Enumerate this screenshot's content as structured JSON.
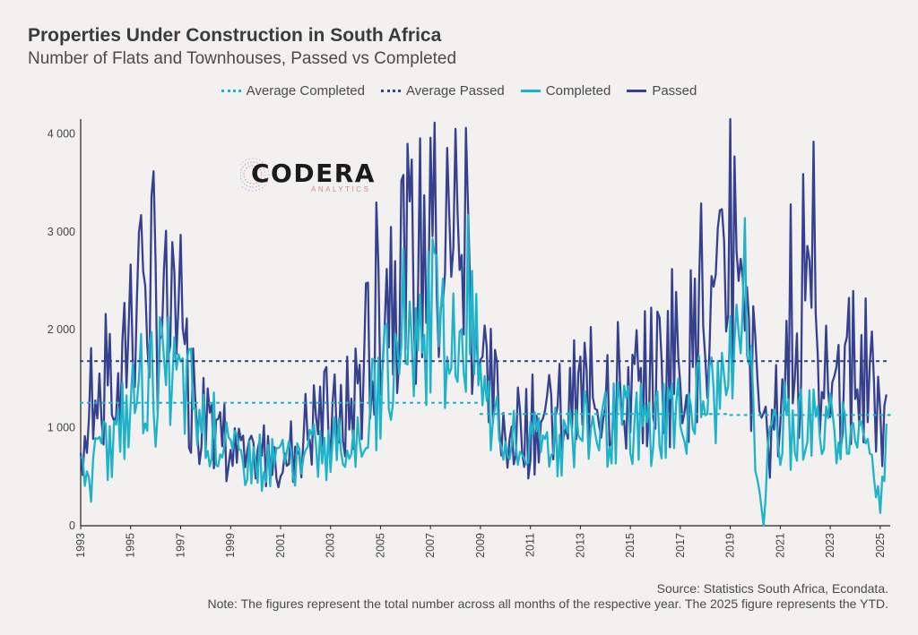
{
  "title": "Properties Under Construction in South Africa",
  "subtitle": "Number of Flats and Townhouses, Passed vs Completed",
  "legend": [
    {
      "label": "Average Completed",
      "style": "dotted",
      "color": "#1fb3c9"
    },
    {
      "label": "Average Passed",
      "style": "dotted",
      "color": "#35418f"
    },
    {
      "label": "Completed",
      "style": "solid",
      "color": "#1fb3c9"
    },
    {
      "label": "Passed",
      "style": "solid",
      "color": "#35418f"
    }
  ],
  "logo": {
    "name": "CODERA",
    "sub": "ANALYTICS"
  },
  "footer": {
    "source": "Source: Statistics South Africa, Econdata.",
    "note": "Note: The figures represent the total number across all months of the respective year. The 2025 figure represents the YTD."
  },
  "chart_data": {
    "type": "line",
    "title": "Properties Under Construction in South Africa",
    "xlabel": "",
    "ylabel": "",
    "xlim": [
      1993,
      2025.4
    ],
    "ylim": [
      0,
      4150
    ],
    "x_ticks": [
      "1993",
      "1995",
      "1997",
      "1999",
      "2001",
      "2003",
      "2005",
      "2007",
      "2009",
      "2011",
      "2013",
      "2015",
      "2017",
      "2019",
      "2021",
      "2023",
      "2025"
    ],
    "y_ticks": [
      "0",
      "1 000",
      "2 000",
      "3 000",
      "4 000"
    ],
    "grid": false,
    "legend_position": "top-center",
    "series": [
      {
        "name": "Passed",
        "color": "#35418f",
        "anchors": [
          [
            1993.0,
            750
          ],
          [
            1993.3,
            1150
          ],
          [
            1993.6,
            1800
          ],
          [
            1993.9,
            1350
          ],
          [
            1994.2,
            1700
          ],
          [
            1994.6,
            1050
          ],
          [
            1994.9,
            2200
          ],
          [
            1995.2,
            2500
          ],
          [
            1995.5,
            2700
          ],
          [
            1995.8,
            2400
          ],
          [
            1996.1,
            2300
          ],
          [
            1996.4,
            2050
          ],
          [
            1996.7,
            1900
          ],
          [
            1997.0,
            1700
          ],
          [
            1997.4,
            1500
          ],
          [
            1997.8,
            1100
          ],
          [
            1998.2,
            1300
          ],
          [
            1998.6,
            1000
          ],
          [
            1999.0,
            700
          ],
          [
            1999.4,
            700
          ],
          [
            1999.8,
            600
          ],
          [
            2000.2,
            700
          ],
          [
            2000.6,
            800
          ],
          [
            2001.0,
            750
          ],
          [
            2001.4,
            750
          ],
          [
            2001.8,
            900
          ],
          [
            2002.2,
            1000
          ],
          [
            2002.6,
            1150
          ],
          [
            2003.0,
            1000
          ],
          [
            2003.4,
            1100
          ],
          [
            2003.8,
            1200
          ],
          [
            2004.2,
            1500
          ],
          [
            2004.6,
            1900
          ],
          [
            2005.0,
            2500
          ],
          [
            2005.4,
            2600
          ],
          [
            2005.8,
            2900
          ],
          [
            2006.2,
            2600
          ],
          [
            2006.6,
            2700
          ],
          [
            2007.0,
            2900
          ],
          [
            2007.4,
            2700
          ],
          [
            2007.8,
            3000
          ],
          [
            2008.2,
            2800
          ],
          [
            2008.6,
            2600
          ],
          [
            2009.0,
            1700
          ],
          [
            2009.4,
            1400
          ],
          [
            2009.8,
            1100
          ],
          [
            2010.2,
            1000
          ],
          [
            2010.6,
            950
          ],
          [
            2011.0,
            1000
          ],
          [
            2011.5,
            1100
          ],
          [
            2012.0,
            1100
          ],
          [
            2012.5,
            1200
          ],
          [
            2013.0,
            1300
          ],
          [
            2013.5,
            1350
          ],
          [
            2014.0,
            1450
          ],
          [
            2014.5,
            1500
          ],
          [
            2015.0,
            1400
          ],
          [
            2015.5,
            1450
          ],
          [
            2016.0,
            1600
          ],
          [
            2016.5,
            1650
          ],
          [
            2017.0,
            1700
          ],
          [
            2017.5,
            1800
          ],
          [
            2018.0,
            1900
          ],
          [
            2018.5,
            2100
          ],
          [
            2019.0,
            2500
          ],
          [
            2019.4,
            2000
          ],
          [
            2019.8,
            1700
          ],
          [
            2020.2,
            1200
          ],
          [
            2020.5,
            700
          ],
          [
            2020.9,
            1200
          ],
          [
            2021.3,
            1700
          ],
          [
            2021.7,
            1750
          ],
          [
            2022.1,
            1900
          ],
          [
            2022.5,
            1700
          ],
          [
            2022.9,
            1500
          ],
          [
            2023.3,
            1500
          ],
          [
            2023.7,
            1550
          ],
          [
            2024.1,
            1450
          ],
          [
            2024.5,
            1300
          ],
          [
            2024.9,
            1000
          ],
          [
            2025.3,
            1200
          ]
        ],
        "spikes": [
          [
            1995.45,
            3170
          ],
          [
            1997.0,
            2970
          ],
          [
            2002.85,
            1620
          ],
          [
            2004.85,
            3300
          ],
          [
            2005.85,
            3520
          ],
          [
            2007.0,
            3960
          ],
          [
            2008.0,
            4050
          ],
          [
            2008.45,
            4060
          ],
          [
            2016.7,
            2620
          ],
          [
            2017.8,
            3290
          ],
          [
            2019.0,
            4180
          ],
          [
            2019.2,
            3770
          ],
          [
            2021.4,
            3280
          ],
          [
            2021.95,
            3590
          ],
          [
            2022.35,
            3920
          ],
          [
            2024.4,
            2320
          ]
        ]
      },
      {
        "name": "Completed",
        "color": "#1fb3c9",
        "anchors": [
          [
            1993.0,
            500
          ],
          [
            1993.5,
            600
          ],
          [
            1994.0,
            800
          ],
          [
            1994.5,
            900
          ],
          [
            1995.0,
            1200
          ],
          [
            1995.5,
            1500
          ],
          [
            1996.0,
            1400
          ],
          [
            1996.5,
            1500
          ],
          [
            1997.0,
            1400
          ],
          [
            1997.5,
            1300
          ],
          [
            1998.0,
            1100
          ],
          [
            1998.5,
            900
          ],
          [
            1999.0,
            700
          ],
          [
            1999.5,
            650
          ],
          [
            2000.0,
            650
          ],
          [
            2000.5,
            600
          ],
          [
            2001.0,
            650
          ],
          [
            2001.5,
            700
          ],
          [
            2002.0,
            700
          ],
          [
            2002.5,
            750
          ],
          [
            2003.0,
            800
          ],
          [
            2003.5,
            850
          ],
          [
            2004.0,
            900
          ],
          [
            2004.5,
            1100
          ],
          [
            2005.0,
            1400
          ],
          [
            2005.5,
            1800
          ],
          [
            2006.0,
            2000
          ],
          [
            2006.5,
            2000
          ],
          [
            2007.0,
            2100
          ],
          [
            2007.5,
            1900
          ],
          [
            2008.0,
            2000
          ],
          [
            2008.5,
            2000
          ],
          [
            2009.0,
            1500
          ],
          [
            2009.5,
            1000
          ],
          [
            2010.0,
            800
          ],
          [
            2010.5,
            750
          ],
          [
            2011.0,
            800
          ],
          [
            2011.5,
            850
          ],
          [
            2012.0,
            850
          ],
          [
            2012.5,
            850
          ],
          [
            2013.0,
            950
          ],
          [
            2013.5,
            1000
          ],
          [
            2014.0,
            1000
          ],
          [
            2014.5,
            1050
          ],
          [
            2015.0,
            1000
          ],
          [
            2015.5,
            1000
          ],
          [
            2016.0,
            1100
          ],
          [
            2016.5,
            1150
          ],
          [
            2017.0,
            1200
          ],
          [
            2017.5,
            1250
          ],
          [
            2018.0,
            1300
          ],
          [
            2018.5,
            1300
          ],
          [
            2019.0,
            1600
          ],
          [
            2019.5,
            1700
          ],
          [
            2019.9,
            1100
          ],
          [
            2020.3,
            150
          ],
          [
            2020.6,
            800
          ],
          [
            2021.0,
            1000
          ],
          [
            2021.5,
            1000
          ],
          [
            2022.0,
            1050
          ],
          [
            2022.5,
            1000
          ],
          [
            2023.0,
            1000
          ],
          [
            2023.5,
            1000
          ],
          [
            2024.0,
            950
          ],
          [
            2024.5,
            900
          ],
          [
            2025.0,
            250
          ],
          [
            2025.3,
            1200
          ]
        ],
        "spikes": [
          [
            1996.2,
            2130
          ],
          [
            2005.9,
            2830
          ],
          [
            2008.5,
            3170
          ],
          [
            2019.55,
            3140
          ],
          [
            2020.35,
            0
          ]
        ]
      },
      {
        "name": "Average Passed",
        "color": "#35418f",
        "style": "dotted",
        "segments": [
          [
            1993.0,
            2025.4,
            1680
          ]
        ]
      },
      {
        "name": "Average Completed",
        "color": "#1fb3c9",
        "style": "dotted",
        "segments": [
          [
            1993.0,
            2009.0,
            1255
          ],
          [
            2009.0,
            2019.0,
            1140
          ],
          [
            2019.0,
            2025.4,
            1130
          ]
        ]
      }
    ]
  }
}
